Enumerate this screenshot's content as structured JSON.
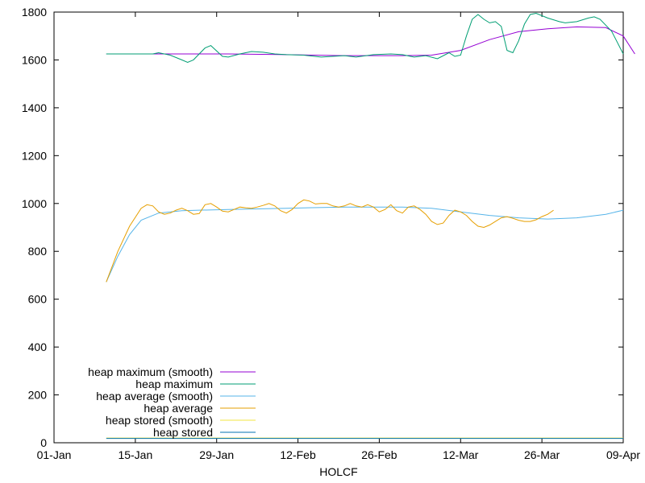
{
  "chart_data": {
    "type": "line",
    "xlabel": "HOLCF",
    "ylabel": "",
    "title": "",
    "x_ticks": [
      "01-Jan",
      "15-Jan",
      "29-Jan",
      "12-Feb",
      "26-Feb",
      "12-Mar",
      "26-Mar",
      "09-Apr"
    ],
    "y_ticks": [
      "0",
      "200",
      "400",
      "600",
      "800",
      "1000",
      "1200",
      "1400",
      "1600",
      "1800"
    ],
    "ylim": [
      0,
      1800
    ],
    "xlim_days": [
      0,
      98
    ],
    "legend_position": "bottom-left",
    "grid": false,
    "series": [
      {
        "name": "heap maximum (smooth)",
        "color": "#9400d3",
        "points": [
          [
            9,
            1625
          ],
          [
            20,
            1625
          ],
          [
            30,
            1625
          ],
          [
            40,
            1622
          ],
          [
            50,
            1618
          ],
          [
            60,
            1618
          ],
          [
            65,
            1620
          ],
          [
            70,
            1640
          ],
          [
            75,
            1685
          ],
          [
            80,
            1718
          ],
          [
            85,
            1730
          ],
          [
            90,
            1738
          ],
          [
            95,
            1735
          ],
          [
            98,
            1700
          ],
          [
            100,
            1625
          ]
        ]
      },
      {
        "name": "heap maximum",
        "color": "#009e73",
        "points": [
          [
            9,
            1625
          ],
          [
            17,
            1625
          ],
          [
            18,
            1630
          ],
          [
            20,
            1620
          ],
          [
            22,
            1600
          ],
          [
            23,
            1590
          ],
          [
            24,
            1600
          ],
          [
            26,
            1650
          ],
          [
            27,
            1660
          ],
          [
            29,
            1615
          ],
          [
            30,
            1612
          ],
          [
            32,
            1625
          ],
          [
            34,
            1635
          ],
          [
            36,
            1632
          ],
          [
            38,
            1625
          ],
          [
            40,
            1622
          ],
          [
            43,
            1620
          ],
          [
            46,
            1612
          ],
          [
            50,
            1618
          ],
          [
            52,
            1612
          ],
          [
            55,
            1622
          ],
          [
            58,
            1625
          ],
          [
            60,
            1622
          ],
          [
            62,
            1612
          ],
          [
            64,
            1618
          ],
          [
            66,
            1605
          ],
          [
            68,
            1630
          ],
          [
            69,
            1615
          ],
          [
            70,
            1620
          ],
          [
            71,
            1700
          ],
          [
            72,
            1770
          ],
          [
            73,
            1790
          ],
          [
            74,
            1770
          ],
          [
            75,
            1755
          ],
          [
            76,
            1760
          ],
          [
            77,
            1740
          ],
          [
            78,
            1640
          ],
          [
            79,
            1630
          ],
          [
            80,
            1680
          ],
          [
            81,
            1750
          ],
          [
            82,
            1790
          ],
          [
            83,
            1795
          ],
          [
            85,
            1775
          ],
          [
            87,
            1760
          ],
          [
            88,
            1755
          ],
          [
            90,
            1760
          ],
          [
            92,
            1775
          ],
          [
            93,
            1780
          ],
          [
            94,
            1770
          ],
          [
            96,
            1720
          ],
          [
            98,
            1625
          ]
        ]
      },
      {
        "name": "heap average (smooth)",
        "color": "#56b4e9",
        "points": [
          [
            9,
            672
          ],
          [
            11,
            780
          ],
          [
            13,
            870
          ],
          [
            15,
            930
          ],
          [
            18,
            960
          ],
          [
            22,
            970
          ],
          [
            30,
            975
          ],
          [
            40,
            980
          ],
          [
            50,
            985
          ],
          [
            60,
            985
          ],
          [
            65,
            980
          ],
          [
            70,
            965
          ],
          [
            75,
            950
          ],
          [
            80,
            940
          ],
          [
            85,
            935
          ],
          [
            90,
            940
          ],
          [
            95,
            955
          ],
          [
            98,
            972
          ]
        ]
      },
      {
        "name": "heap average",
        "color": "#e69f00",
        "points": [
          [
            9,
            672
          ],
          [
            11,
            800
          ],
          [
            13,
            905
          ],
          [
            15,
            980
          ],
          [
            16,
            995
          ],
          [
            17,
            990
          ],
          [
            18,
            965
          ],
          [
            19,
            955
          ],
          [
            20,
            960
          ],
          [
            21,
            972
          ],
          [
            22,
            980
          ],
          [
            23,
            970
          ],
          [
            24,
            955
          ],
          [
            25,
            958
          ],
          [
            26,
            995
          ],
          [
            27,
            1000
          ],
          [
            28,
            985
          ],
          [
            29,
            968
          ],
          [
            30,
            965
          ],
          [
            31,
            975
          ],
          [
            32,
            985
          ],
          [
            33,
            982
          ],
          [
            34,
            980
          ],
          [
            35,
            985
          ],
          [
            36,
            992
          ],
          [
            37,
            1000
          ],
          [
            38,
            990
          ],
          [
            39,
            970
          ],
          [
            40,
            960
          ],
          [
            41,
            975
          ],
          [
            42,
            1000
          ],
          [
            43,
            1015
          ],
          [
            44,
            1010
          ],
          [
            45,
            998
          ],
          [
            46,
            1000
          ],
          [
            47,
            1000
          ],
          [
            48,
            990
          ],
          [
            49,
            985
          ],
          [
            50,
            990
          ],
          [
            51,
            1000
          ],
          [
            52,
            990
          ],
          [
            53,
            985
          ],
          [
            54,
            995
          ],
          [
            55,
            985
          ],
          [
            56,
            965
          ],
          [
            57,
            975
          ],
          [
            58,
            995
          ],
          [
            59,
            970
          ],
          [
            60,
            960
          ],
          [
            61,
            985
          ],
          [
            62,
            990
          ],
          [
            63,
            975
          ],
          [
            64,
            955
          ],
          [
            65,
            925
          ],
          [
            66,
            912
          ],
          [
            67,
            918
          ],
          [
            68,
            950
          ],
          [
            69,
            972
          ],
          [
            70,
            965
          ],
          [
            71,
            950
          ],
          [
            72,
            925
          ],
          [
            73,
            905
          ],
          [
            74,
            900
          ],
          [
            75,
            910
          ],
          [
            76,
            925
          ],
          [
            77,
            940
          ],
          [
            78,
            945
          ],
          [
            79,
            938
          ],
          [
            80,
            930
          ],
          [
            81,
            925
          ],
          [
            82,
            925
          ],
          [
            83,
            932
          ],
          [
            84,
            945
          ],
          [
            85,
            955
          ],
          [
            86,
            972
          ]
        ]
      },
      {
        "name": "heap stored (smooth)",
        "color": "#f0e442",
        "points": [
          [
            9,
            20
          ],
          [
            98,
            20
          ]
        ]
      },
      {
        "name": "heap stored",
        "color": "#0072b2",
        "points": [
          [
            9,
            18
          ],
          [
            98,
            18
          ]
        ]
      }
    ]
  }
}
